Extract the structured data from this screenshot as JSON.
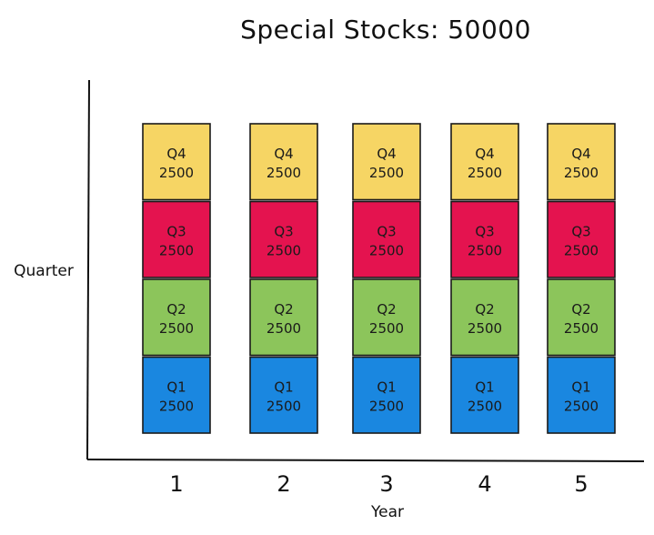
{
  "chart_data": {
    "type": "bar",
    "stacked": true,
    "title": "Special Stocks: 50000",
    "xlabel": "Year",
    "ylabel": "Quarter",
    "categories": [
      "1",
      "2",
      "3",
      "4",
      "5"
    ],
    "series": [
      {
        "name": "Q1",
        "color": "#1a87e0",
        "values": [
          2500,
          2500,
          2500,
          2500,
          2500
        ],
        "labels": [
          "2500",
          "2500",
          "2500",
          "2500",
          "2500"
        ]
      },
      {
        "name": "Q2",
        "color": "#8cc55b",
        "values": [
          2500,
          2500,
          2500,
          2500,
          2500
        ],
        "labels": [
          "2500",
          "2500",
          "2500",
          "2500",
          "2500"
        ]
      },
      {
        "name": "Q3",
        "color": "#e4134f",
        "values": [
          2500,
          2500,
          2500,
          2500,
          2500
        ],
        "labels": [
          "2500",
          "2500",
          "2500",
          "2500",
          "2500"
        ]
      },
      {
        "name": "Q4",
        "color": "#f6d564",
        "values": [
          2500,
          2500,
          2500,
          2500,
          2500
        ],
        "labels": [
          "2500",
          "2500",
          "2500",
          "2500",
          "2500"
        ]
      }
    ],
    "ylim": [
      0,
      10000
    ],
    "grid": false,
    "legend": "none"
  }
}
